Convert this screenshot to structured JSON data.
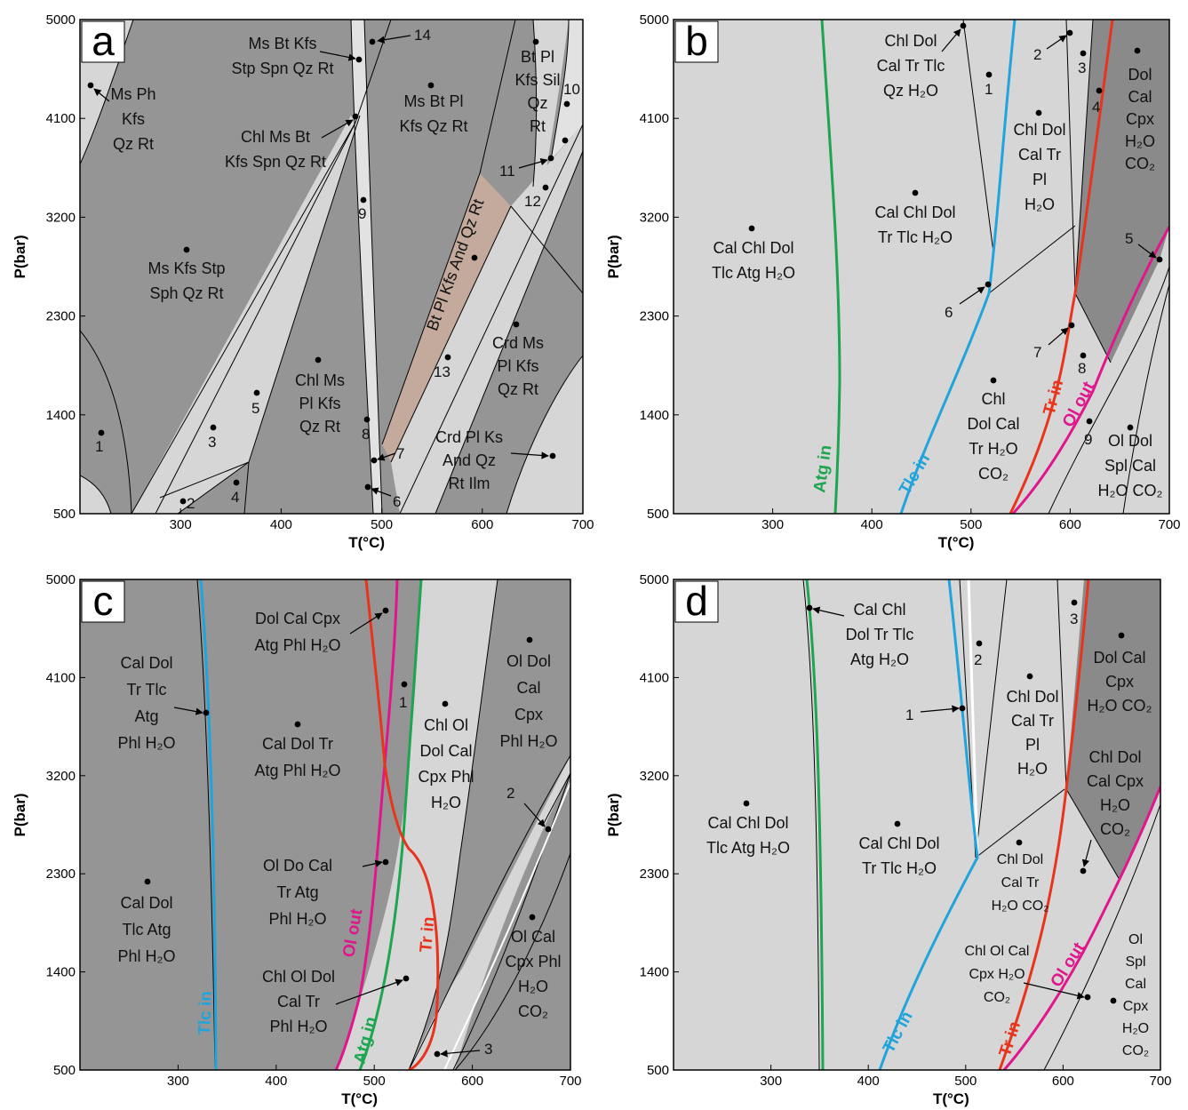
{
  "colors": {
    "dark": "#959595",
    "darker": "#8a8a8a",
    "light": "#d6d6d6",
    "lighter": "#e2e2e2",
    "brown": "#c3aa9c",
    "green": "#1ea550",
    "blue": "#21a3dc",
    "red": "#e8341c",
    "magenta": "#e0168c"
  },
  "chart_data": [
    {
      "type": "phase-diagram",
      "panel": "a",
      "xlabel": "T(°C)",
      "ylabel": "P(bar)",
      "xlim": [
        200,
        700
      ],
      "ylim": [
        500,
        5000
      ],
      "xticks": [
        "300",
        "400",
        "500",
        "600",
        "700"
      ],
      "yticks": [
        "500",
        "1400",
        "2300",
        "3200",
        "4100",
        "5000"
      ],
      "fields": [
        {
          "text": [
            "Ms Ph",
            "Kfs",
            "Qz Rt"
          ]
        },
        {
          "text": [
            "Ms Bt Kfs",
            "Stp Spn Qz Rt"
          ]
        },
        {
          "text": [
            "Chl Ms Bt",
            "Kfs Spn Qz Rt"
          ]
        },
        {
          "text": [
            "Ms Bt Pl",
            "Kfs Qz Rt"
          ]
        },
        {
          "text": [
            "Bt Pl",
            "Kfs Sil",
            "Qz",
            "Rt"
          ]
        },
        {
          "text": [
            "Ms Kfs Stp",
            "Sph Qz Rt"
          ]
        },
        {
          "text": [
            "Chl Ms",
            "Pl Kfs",
            "Qz Rt"
          ]
        },
        {
          "text": [
            "Bt Pl Kfs And Qz Rt"
          ]
        },
        {
          "text": [
            "Crd Ms",
            "Pl Kfs",
            "Qz Rt"
          ]
        },
        {
          "text": [
            "Crd Pl Ks",
            "And Qz",
            "Rt Ilm"
          ]
        }
      ],
      "numbered_points": [
        "1",
        "2",
        "3",
        "4",
        "5",
        "6",
        "7",
        "8",
        "9",
        "10",
        "11",
        "12",
        "13",
        "14"
      ]
    },
    {
      "type": "phase-diagram",
      "panel": "b",
      "xlabel": "T(°C)",
      "ylabel": "P(bar)",
      "xlim": [
        200,
        700
      ],
      "ylim": [
        500,
        5000
      ],
      "xticks": [
        "300",
        "400",
        "500",
        "600",
        "700"
      ],
      "yticks": [
        "500",
        "1400",
        "2300",
        "3200",
        "4100",
        "5000"
      ],
      "fields": [
        {
          "text": [
            "Chl Dol",
            "Cal Tr Tlc",
            "Qz H₂O"
          ]
        },
        {
          "text": [
            "Dol",
            "Cal",
            "Cpx",
            "H₂O",
            "CO₂"
          ]
        },
        {
          "text": [
            "Chl Dol",
            "Cal Tr",
            "Pl",
            "H₂O"
          ]
        },
        {
          "text": [
            "Cal Chl Dol",
            "Tr Tlc H₂O"
          ]
        },
        {
          "text": [
            "Cal Chl Dol",
            "Tlc Atg H₂O"
          ]
        },
        {
          "text": [
            "Chl",
            "Dol Cal",
            "Tr H₂O",
            "CO₂"
          ]
        },
        {
          "text": [
            "Ol Dol",
            "Spl Cal",
            "H₂O CO₂"
          ]
        }
      ],
      "curves": [
        "Atg in",
        "Tlc in",
        "Tr in",
        "Ol out"
      ],
      "numbered_points": [
        "1",
        "2",
        "3",
        "4",
        "5",
        "6",
        "7",
        "8",
        "9"
      ]
    },
    {
      "type": "phase-diagram",
      "panel": "c",
      "xlabel": "T(°C)",
      "ylabel": "P(bar)",
      "xlim": [
        200,
        700
      ],
      "ylim": [
        500,
        5000
      ],
      "xticks": [
        "300",
        "400",
        "500",
        "600",
        "700"
      ],
      "yticks": [
        "500",
        "1400",
        "2300",
        "3200",
        "4100",
        "5000"
      ],
      "fields": [
        {
          "text": [
            "Cal Dol",
            "Tr Tlc",
            "Atg",
            "Phl H₂O"
          ]
        },
        {
          "text": [
            "Dol Cal Cpx",
            "Atg Phl H₂O"
          ]
        },
        {
          "text": [
            "Cal Dol Tr",
            "Atg Phl H₂O"
          ]
        },
        {
          "text": [
            "Chl Ol",
            "Dol Cal",
            "Cpx Phl",
            "H₂O"
          ]
        },
        {
          "text": [
            "Ol Dol",
            "Cal",
            "Cpx",
            "Phl H₂O"
          ]
        },
        {
          "text": [
            "Ol Do Cal",
            "Tr Atg",
            "Phl H₂O"
          ]
        },
        {
          "text": [
            "Cal Dol",
            "Tlc Atg",
            "Phl H₂O"
          ]
        },
        {
          "text": [
            "Ol Cal",
            "Cpx Phl",
            "H₂O",
            "CO₂"
          ]
        },
        {
          "text": [
            "Chl Ol Dol",
            "Cal Tr",
            "Phl H₂O"
          ]
        }
      ],
      "curves": [
        "Tlc in",
        "Ol out",
        "Atg in",
        "Tr in"
      ],
      "numbered_points": [
        "1",
        "2",
        "3"
      ]
    },
    {
      "type": "phase-diagram",
      "panel": "d",
      "xlabel": "T(°C)",
      "ylabel": "P(bar)",
      "xlim": [
        200,
        700
      ],
      "ylim": [
        500,
        5000
      ],
      "xticks": [
        "300",
        "400",
        "500",
        "600",
        "700"
      ],
      "yticks": [
        "500",
        "1400",
        "2300",
        "3200",
        "4100",
        "5000"
      ],
      "fields": [
        {
          "text": [
            "Cal Chl",
            "Dol Tr Tlc",
            "Atg H₂O"
          ]
        },
        {
          "text": [
            "Chl Dol",
            "Cal Tr",
            "Pl",
            "H₂O"
          ]
        },
        {
          "text": [
            "Dol Cal",
            "Cpx",
            "H₂O CO₂"
          ]
        },
        {
          "text": [
            "Chl Dol",
            "Cal Cpx",
            "H₂O",
            "CO₂"
          ]
        },
        {
          "text": [
            "Cal Chl Dol",
            "Tlc Atg H₂O"
          ]
        },
        {
          "text": [
            "Cal Chl Dol",
            "Tr Tlc H₂O"
          ]
        },
        {
          "text": [
            "Chl Dol",
            "Cal Tr",
            "H₂O CO₂"
          ]
        },
        {
          "text": [
            "Chl Ol Cal",
            "Cpx H₂O",
            "CO₂"
          ]
        },
        {
          "text": [
            "Ol",
            "Spl",
            "Cal",
            "Cpx",
            "H₂O",
            "CO₂"
          ]
        }
      ],
      "curves": [
        "Tlc in",
        "Tr in",
        "Ol out"
      ],
      "numbered_points": [
        "1",
        "2",
        "3"
      ]
    }
  ]
}
